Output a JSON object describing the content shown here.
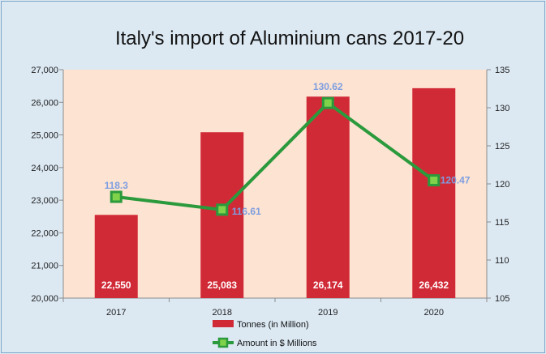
{
  "chart_data": {
    "type": "bar",
    "title": "Italy's import of Aluminium cans 2017-20",
    "categories": [
      "2017",
      "2018",
      "2019",
      "2020"
    ],
    "series": [
      {
        "name": "Tonnes (in Million)",
        "type": "bar",
        "axis": "left",
        "values": [
          22550,
          25083,
          26174,
          26432
        ],
        "labels": [
          "22,550",
          "25,083",
          "26,174",
          "26,432"
        ],
        "color": "#d12a37"
      },
      {
        "name": "Amount in $ Millions",
        "type": "line",
        "axis": "right",
        "values": [
          118.3,
          116.61,
          130.62,
          120.47
        ],
        "labels": [
          "118.3",
          "116.61",
          "130.62",
          "120.47"
        ],
        "color": "#2a9a3c",
        "marker_color": "#7fd24a"
      }
    ],
    "y_left": {
      "min": 20000,
      "max": 27000,
      "ticks": [
        "20,000",
        "21,000",
        "22,000",
        "23,000",
        "24,000",
        "25,000",
        "26,000",
        "27,000"
      ],
      "tick_values": [
        20000,
        21000,
        22000,
        23000,
        24000,
        25000,
        26000,
        27000
      ]
    },
    "y_right": {
      "min": 105,
      "max": 135,
      "ticks": [
        "105",
        "110",
        "115",
        "120",
        "125",
        "130",
        "135"
      ],
      "tick_values": [
        105,
        110,
        115,
        120,
        125,
        130,
        135
      ]
    },
    "plot_background": "#fde3d2",
    "grid": false,
    "legend_position": "bottom"
  }
}
